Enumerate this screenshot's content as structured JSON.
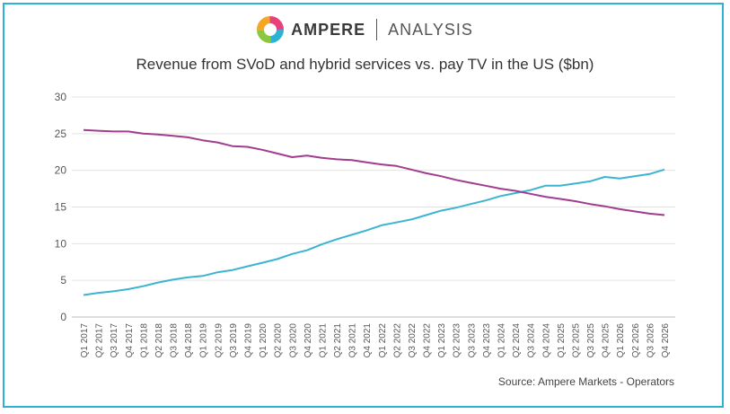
{
  "brand": {
    "name": "AMPERE",
    "sub": "ANALYSIS"
  },
  "source": "Source: Ampere Markets - Operators",
  "colors": {
    "svod": "#3bb4cf",
    "paytv": "#a23c8f",
    "border": "#2bb3d6"
  },
  "chart_data": {
    "type": "line",
    "title": "Revenue from SVoD and hybrid services vs. pay TV in the US ($bn)",
    "xlabel": "",
    "ylabel": "",
    "ylim": [
      0,
      30
    ],
    "yticks": [
      0,
      5,
      10,
      15,
      20,
      25,
      30
    ],
    "categories": [
      "Q1 2017",
      "Q2 2017",
      "Q3 2017",
      "Q4 2017",
      "Q1 2018",
      "Q2 2018",
      "Q3 2018",
      "Q4 2018",
      "Q1 2019",
      "Q2 2019",
      "Q3 2019",
      "Q4 2019",
      "Q1 2020",
      "Q2 2020",
      "Q3 2020",
      "Q4 2020",
      "Q1 2021",
      "Q2 2021",
      "Q3 2021",
      "Q4 2021",
      "Q1 2022",
      "Q2 2022",
      "Q3 2022",
      "Q4 2022",
      "Q1 2023",
      "Q2 2023",
      "Q3 2023",
      "Q4 2023",
      "Q1 2024",
      "Q2 2024",
      "Q3 2024",
      "Q4 2024",
      "Q1 2025",
      "Q2 2025",
      "Q3 2025",
      "Q4 2025",
      "Q1 2026",
      "Q2 2026",
      "Q3 2026",
      "Q4 2026"
    ],
    "series": [
      {
        "name": "SVoD and hybrid services",
        "values": [
          3.0,
          3.3,
          3.5,
          3.8,
          4.2,
          4.7,
          5.1,
          5.4,
          5.6,
          6.1,
          6.4,
          6.9,
          7.4,
          7.9,
          8.6,
          9.1,
          9.9,
          10.6,
          11.2,
          11.8,
          12.5,
          12.9,
          13.3,
          13.9,
          14.5,
          14.9,
          15.4,
          15.9,
          16.5,
          16.9,
          17.3,
          17.9,
          17.9,
          18.2,
          18.5,
          19.1,
          18.9,
          19.2,
          19.5,
          20.1
        ]
      },
      {
        "name": "Pay TV",
        "values": [
          25.5,
          25.4,
          25.3,
          25.3,
          25.0,
          24.9,
          24.7,
          24.5,
          24.1,
          23.8,
          23.3,
          23.2,
          22.8,
          22.3,
          21.8,
          22.0,
          21.7,
          21.5,
          21.4,
          21.1,
          20.8,
          20.6,
          20.1,
          19.6,
          19.2,
          18.7,
          18.3,
          17.9,
          17.5,
          17.2,
          16.8,
          16.4,
          16.1,
          15.8,
          15.4,
          15.1,
          14.7,
          14.4,
          14.1,
          13.9
        ]
      }
    ]
  }
}
